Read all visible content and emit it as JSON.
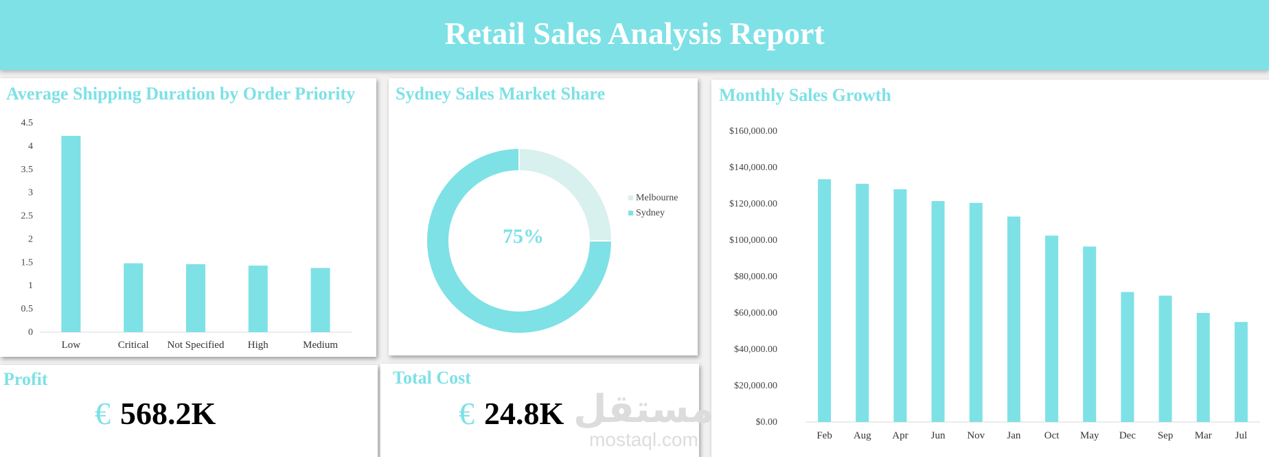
{
  "header": {
    "title": "Retail Sales Analysis Report"
  },
  "colors": {
    "accent": "#7ee1e6",
    "light": "#d8f0ee"
  },
  "shipping": {
    "title": "Average Shipping Duration by Order Priority"
  },
  "share": {
    "title": "Sydney Sales Market Share",
    "center_label": "75%",
    "legend": [
      "Melbourne",
      "Sydney"
    ]
  },
  "growth": {
    "title": "Monthly Sales Growth"
  },
  "profit": {
    "title": "Profit",
    "symbol": "€",
    "value": "568.2K"
  },
  "cost": {
    "title": "Total Cost",
    "symbol": "€",
    "value": "24.8K"
  },
  "watermark": {
    "arabic": "مستقل",
    "latin": "mostaql.com"
  },
  "chart_data": [
    {
      "type": "bar",
      "title": "Average Shipping Duration by Order Priority",
      "categories": [
        "Low",
        "Critical",
        "Not Specified",
        "High",
        "Medium"
      ],
      "values": [
        4.22,
        1.48,
        1.46,
        1.43,
        1.38
      ],
      "ylim": [
        0,
        4.5
      ],
      "yticks": [
        0,
        0.5,
        1,
        1.5,
        2,
        2.5,
        3,
        3.5,
        4,
        4.5
      ],
      "ytick_labels": [
        "0",
        "0.5",
        "1",
        "1.5",
        "2",
        "2.5",
        "3",
        "3.5",
        "4",
        "4.5"
      ],
      "grid": false
    },
    {
      "type": "pie",
      "title": "Sydney Sales Market Share",
      "labels": [
        "Melbourne",
        "Sydney"
      ],
      "values": [
        25,
        75
      ],
      "colors": [
        "#d8f0ee",
        "#7ee1e6"
      ],
      "donut": true,
      "legend_position": "right"
    },
    {
      "type": "bar",
      "title": "Monthly Sales Growth",
      "categories": [
        "Feb",
        "Aug",
        "Apr",
        "Jun",
        "Nov",
        "Jan",
        "Oct",
        "May",
        "Dec",
        "Sep",
        "Mar",
        "Jul"
      ],
      "values": [
        133500,
        131000,
        128000,
        121500,
        120500,
        113000,
        102500,
        96500,
        71500,
        69500,
        60000,
        55000
      ],
      "ylim": [
        0,
        160000
      ],
      "yticks": [
        0,
        20000,
        40000,
        60000,
        80000,
        100000,
        120000,
        140000,
        160000
      ],
      "ytick_labels": [
        "$0.00",
        "$20,000.00",
        "$40,000.00",
        "$60,000.00",
        "$80,000.00",
        "$100,000.00",
        "$120,000.00",
        "$140,000.00",
        "$160,000.00"
      ],
      "grid": false
    }
  ]
}
